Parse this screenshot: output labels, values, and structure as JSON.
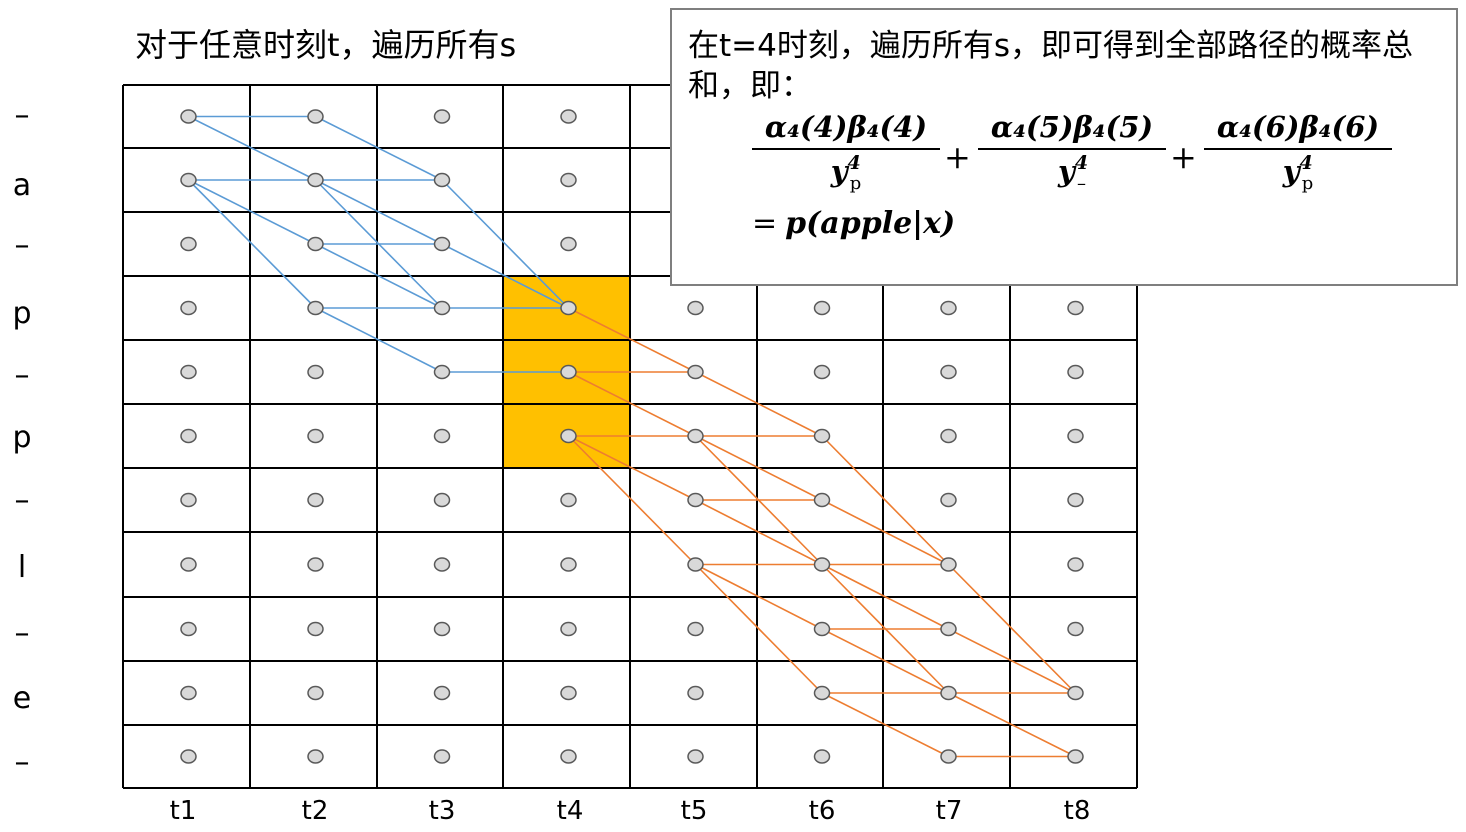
{
  "title": "对于任意时刻t，遍历所有s",
  "row_labels": [
    "–",
    "a",
    "–",
    "p",
    "–",
    "p",
    "–",
    "l",
    "–",
    "e",
    "–"
  ],
  "col_labels": [
    "t1",
    "t2",
    "t3",
    "t4",
    "t5",
    "t6",
    "t7",
    "t8"
  ],
  "highlight": {
    "column": "t4",
    "rows": [
      3,
      4,
      5
    ],
    "color": "#FFC000"
  },
  "colors": {
    "forward_edges": "#5B9BD5",
    "backward_edges": "#ED7D31",
    "node_fill": "#D9D9D9",
    "node_stroke": "#595959",
    "grid": "#000000"
  },
  "forward_edges": [
    [
      0,
      0,
      1,
      0
    ],
    [
      0,
      0,
      1,
      1
    ],
    [
      0,
      1,
      1,
      1
    ],
    [
      0,
      1,
      1,
      2
    ],
    [
      0,
      1,
      1,
      3
    ],
    [
      1,
      0,
      2,
      1
    ],
    [
      1,
      1,
      2,
      1
    ],
    [
      1,
      1,
      2,
      2
    ],
    [
      1,
      1,
      2,
      3
    ],
    [
      1,
      2,
      2,
      2
    ],
    [
      1,
      2,
      2,
      3
    ],
    [
      1,
      3,
      2,
      3
    ],
    [
      1,
      3,
      2,
      4
    ],
    [
      2,
      1,
      3,
      3
    ],
    [
      2,
      2,
      3,
      3
    ],
    [
      2,
      3,
      3,
      3
    ],
    [
      2,
      4,
      3,
      4
    ]
  ],
  "backward_edges": [
    [
      3,
      3,
      4,
      4
    ],
    [
      3,
      4,
      4,
      4
    ],
    [
      3,
      4,
      4,
      5
    ],
    [
      3,
      5,
      4,
      5
    ],
    [
      3,
      5,
      4,
      6
    ],
    [
      3,
      5,
      4,
      7
    ],
    [
      4,
      4,
      5,
      5
    ],
    [
      4,
      5,
      5,
      5
    ],
    [
      4,
      5,
      5,
      6
    ],
    [
      4,
      5,
      5,
      7
    ],
    [
      4,
      6,
      5,
      6
    ],
    [
      4,
      6,
      5,
      7
    ],
    [
      4,
      7,
      5,
      7
    ],
    [
      4,
      7,
      5,
      8
    ],
    [
      4,
      7,
      5,
      9
    ],
    [
      5,
      5,
      6,
      7
    ],
    [
      5,
      6,
      6,
      7
    ],
    [
      5,
      7,
      6,
      7
    ],
    [
      5,
      7,
      6,
      8
    ],
    [
      5,
      7,
      6,
      9
    ],
    [
      5,
      8,
      6,
      8
    ],
    [
      5,
      8,
      6,
      9
    ],
    [
      5,
      9,
      6,
      9
    ],
    [
      5,
      9,
      6,
      10
    ],
    [
      6,
      7,
      7,
      9
    ],
    [
      6,
      8,
      7,
      9
    ],
    [
      6,
      9,
      7,
      9
    ],
    [
      6,
      9,
      7,
      10
    ],
    [
      6,
      10,
      7,
      10
    ]
  ],
  "info": {
    "text": "在t=4时刻，遍历所有s，即可得到全部路径的概率总和，即：",
    "terms": [
      {
        "numerator": "α₄(4)β₄(4)",
        "denominator_base": "y",
        "denominator_sup": "4",
        "denominator_sub": "p"
      },
      {
        "numerator": "α₄(5)β₄(5)",
        "denominator_base": "y",
        "denominator_sup": "4",
        "denominator_sub": "–"
      },
      {
        "numerator": "α₄(6)β₄(6)",
        "denominator_base": "y",
        "denominator_sup": "4",
        "denominator_sub": "p"
      }
    ],
    "plus": "+",
    "equals": "=",
    "result": "p(apple|x)"
  }
}
